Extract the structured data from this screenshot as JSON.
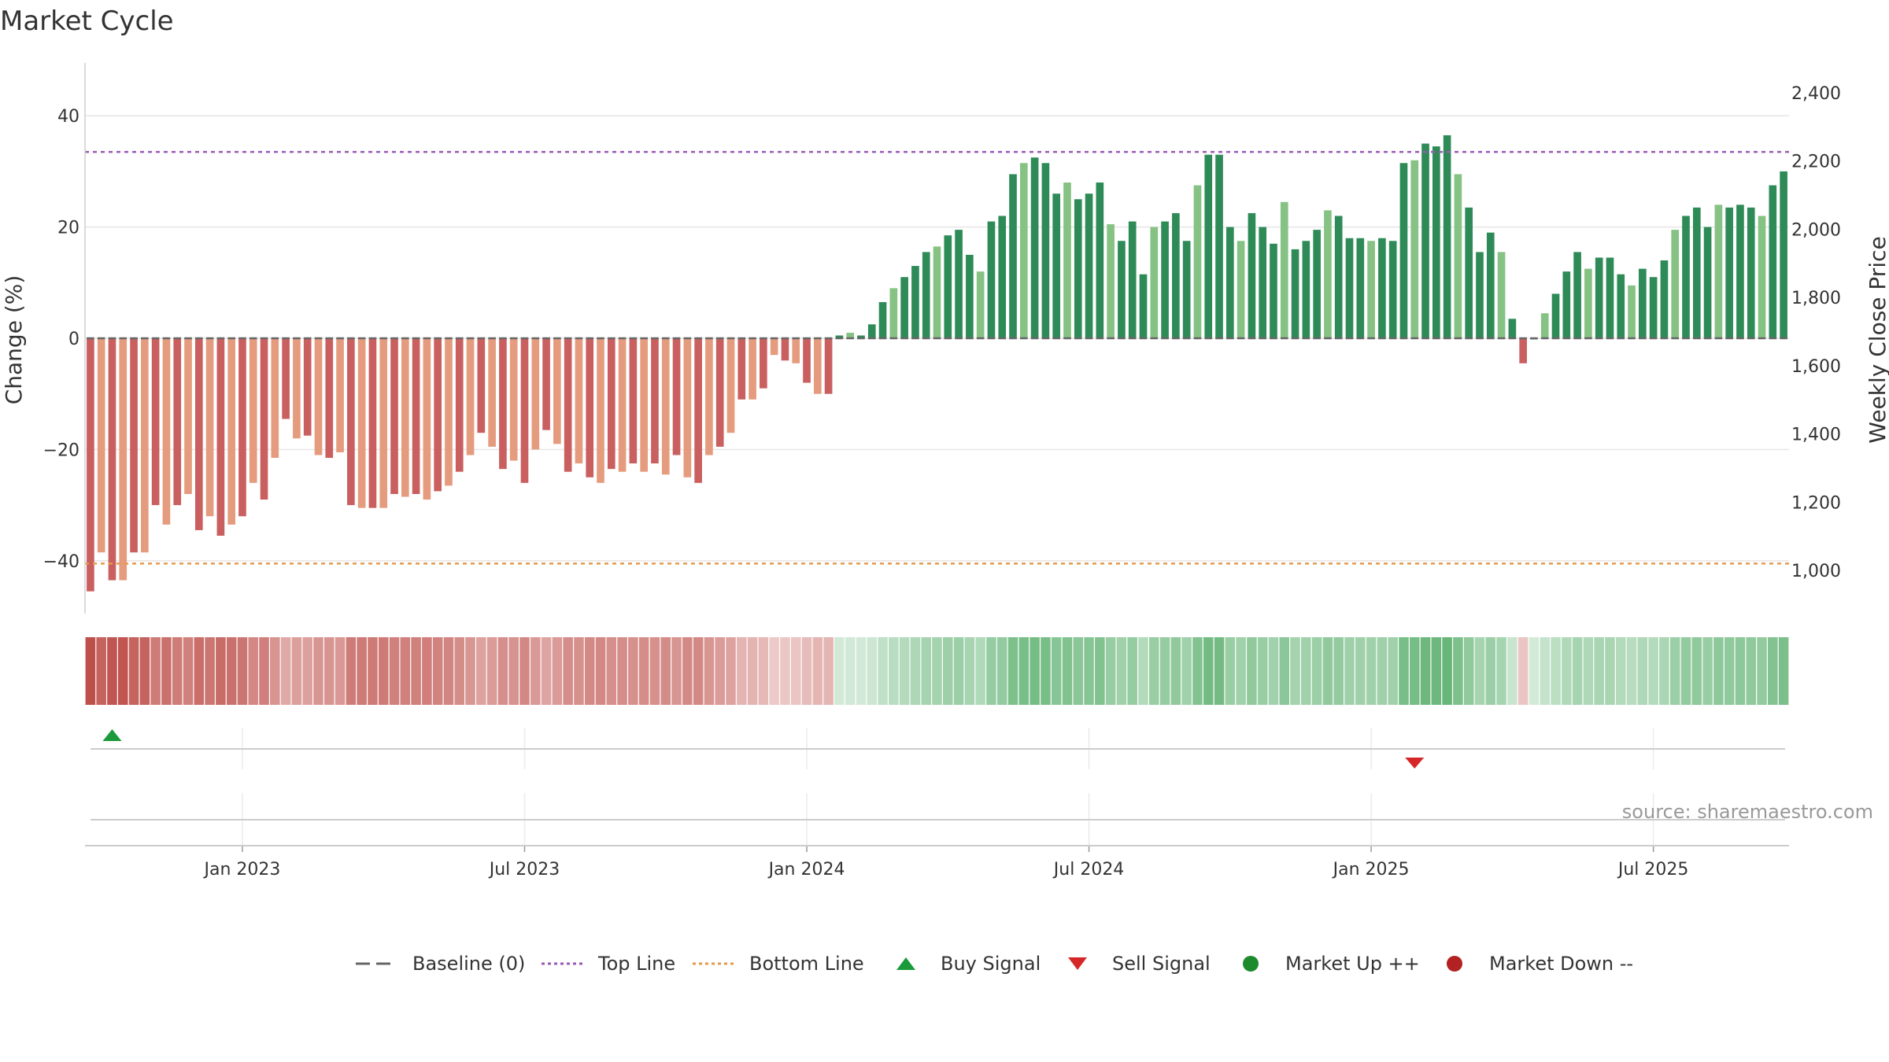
{
  "chart_data": {
    "type": "bar",
    "title": "Market Cycle",
    "ylabel": "Change (%)",
    "y2label": "Weekly Close Price",
    "ylim": [
      -49.5,
      49.5
    ],
    "yticks": [
      40,
      20,
      0,
      -20,
      -40
    ],
    "yticks_labels": [
      "40",
      "20",
      "0",
      "−20",
      "−40"
    ],
    "y2ticks": [
      "2,400",
      "2,200",
      "2,000",
      "1,800",
      "1,600",
      "1,400",
      "1,200",
      "1,000"
    ],
    "xticks": [
      {
        "label": "Jan 2023",
        "index": 14.5
      },
      {
        "label": "Jul 2023",
        "index": 40.5
      },
      {
        "label": "Jan 2024",
        "index": 66.5
      },
      {
        "label": "Jul 2024",
        "index": 92.5
      },
      {
        "label": "Jan 2025",
        "index": 118.5
      },
      {
        "label": "Jul 2025",
        "index": 144.5
      }
    ],
    "top_line": 33.5,
    "bottom_line": -40.5,
    "values": [
      -45.5,
      -38.5,
      -43.5,
      -43.5,
      -38.5,
      -38.5,
      -30,
      -33.5,
      -30,
      -28,
      -34.5,
      -32,
      -35.5,
      -33.5,
      -32,
      -26,
      -29,
      -21.5,
      -14.5,
      -18,
      -17.5,
      -21,
      -21.5,
      -20.5,
      -30,
      -30.5,
      -30.5,
      -30.5,
      -28,
      -28.5,
      -28,
      -29,
      -27.5,
      -26.5,
      -24,
      -21,
      -17,
      -19.5,
      -23.5,
      -22,
      -26,
      -20,
      -16.5,
      -19,
      -24,
      -22.5,
      -25,
      -26,
      -23.5,
      -24,
      -22.5,
      -24,
      -22.5,
      -24.5,
      -21,
      -25,
      -26,
      -21,
      -19.5,
      -17,
      -11,
      -11,
      -9,
      -3,
      -4,
      -4.5,
      -8,
      -10,
      -10,
      0.5,
      1,
      0.5,
      2.5,
      6.5,
      9,
      11,
      13,
      15.5,
      16.5,
      18.5,
      19.5,
      15,
      12,
      21,
      22,
      29.5,
      31.5,
      32.5,
      31.5,
      26,
      28,
      25,
      26,
      28,
      20.5,
      17.5,
      21,
      11.5,
      20,
      21,
      22.5,
      17.5,
      27.5,
      33,
      33,
      20,
      17.5,
      22.5,
      20,
      17,
      24.5,
      16,
      17.5,
      19.5,
      23,
      22,
      18,
      18,
      17.5,
      18,
      17.5,
      31.5,
      32,
      35,
      34.5,
      36.5,
      29.5,
      23.5,
      15.5,
      19,
      15.5,
      3.5,
      -4.5,
      0,
      4.5,
      8,
      12,
      15.5,
      12.5,
      14.5,
      14.5,
      11.5,
      9.5,
      12.5,
      11,
      14,
      19.5,
      22,
      23.5,
      20,
      24,
      23.5,
      24,
      23.5,
      22,
      27.5,
      30
    ],
    "signals": [
      {
        "type": "buy",
        "index": 2
      },
      {
        "type": "sell",
        "index": 122
      }
    ],
    "legend": [
      {
        "label": "Baseline (0)",
        "marker": "dash",
        "color": "#666666"
      },
      {
        "label": "Top Line",
        "marker": "dot-line",
        "color": "#9b59b6"
      },
      {
        "label": "Bottom Line",
        "marker": "dot-line",
        "color": "#e59a4a"
      },
      {
        "label": "Buy Signal",
        "marker": "triangle-up",
        "color": "#1a9a3a"
      },
      {
        "label": "Sell Signal",
        "marker": "triangle-down",
        "color": "#d62728"
      },
      {
        "label": "Market Up ++",
        "marker": "circle",
        "color": "#1e8a2e"
      },
      {
        "label": "Market Down --",
        "marker": "circle",
        "color": "#b22222"
      }
    ],
    "legend_position": "bottom-center",
    "source": "source: sharemaestro.com"
  }
}
